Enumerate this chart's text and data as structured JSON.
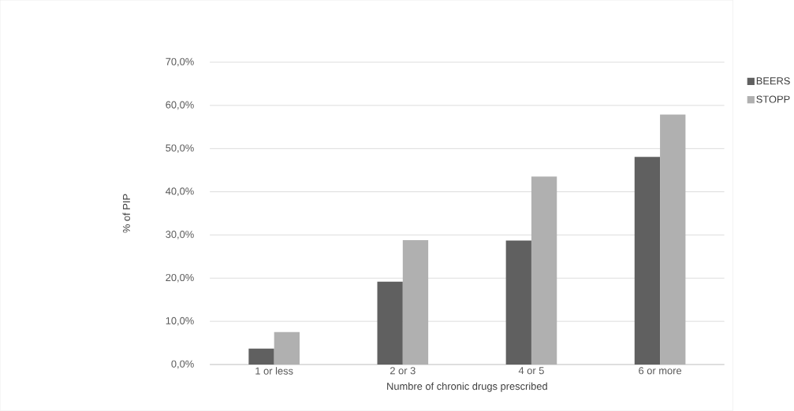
{
  "chart_data": {
    "type": "bar",
    "xlabel": "Numbre of chronic drugs prescribed",
    "ylabel": "% of PIP",
    "categories": [
      "1 or less",
      "2 or 3",
      "4 or 5",
      "6 or more"
    ],
    "series": [
      {
        "name": "BEERS",
        "color": "#606060",
        "values": [
          3.7,
          19.2,
          28.7,
          48.1
        ]
      },
      {
        "name": "STOPP",
        "color": "#b0b0b0",
        "values": [
          7.5,
          28.8,
          43.5,
          57.9
        ]
      }
    ],
    "ylim": [
      0,
      70
    ],
    "yticks": [
      {
        "value": 0,
        "label": "0,0%"
      },
      {
        "value": 10,
        "label": "10,0%"
      },
      {
        "value": 20,
        "label": "20,0%"
      },
      {
        "value": 30,
        "label": "30,0%"
      },
      {
        "value": 40,
        "label": "40,0%"
      },
      {
        "value": 50,
        "label": "50,0%"
      },
      {
        "value": 60,
        "label": "60,0%"
      },
      {
        "value": 70,
        "label": "70,0%"
      }
    ],
    "grid": "y",
    "legend": "right"
  }
}
